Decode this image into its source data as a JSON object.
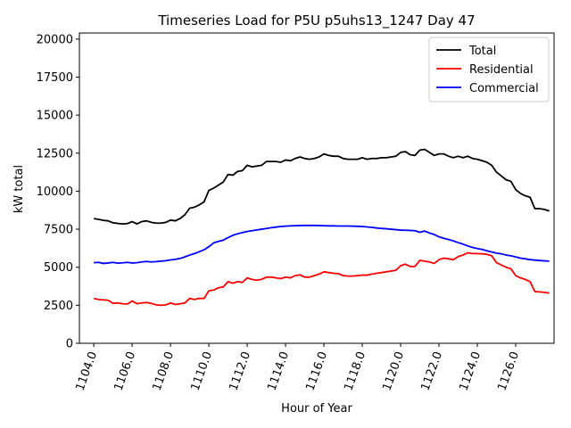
{
  "chart_data": {
    "type": "line",
    "title": "Timeseries Load for P5U p5uhs13_1247  Day 47",
    "xlabel": "Hour of Year",
    "ylabel": "kW total",
    "xlim": [
      1103.25,
      1128.0
    ],
    "ylim": [
      0,
      20400
    ],
    "x_ticks": [
      1104,
      1106,
      1108,
      1110,
      1112,
      1114,
      1116,
      1118,
      1120,
      1122,
      1124,
      1126
    ],
    "x_tick_labels": [
      "1104.0",
      "1106.0",
      "1108.0",
      "1110.0",
      "1112.0",
      "1114.0",
      "1116.0",
      "1118.0",
      "1120.0",
      "1122.0",
      "1124.0",
      "1126.0"
    ],
    "y_ticks": [
      0,
      2500,
      5000,
      7500,
      10000,
      12500,
      15000,
      17500,
      20000
    ],
    "y_tick_labels": [
      "0",
      "2500",
      "5000",
      "7500",
      "10000",
      "12500",
      "15000",
      "17500",
      "20000"
    ],
    "grid": false,
    "legend_position": "top-right",
    "x_start": 1104.0,
    "x_step": 0.25,
    "series": [
      {
        "name": "Total",
        "color": "#000000",
        "values": [
          8200,
          8150,
          8080,
          8050,
          7920,
          7880,
          7850,
          7870,
          8000,
          7850,
          8000,
          8050,
          7950,
          7900,
          7900,
          7950,
          8100,
          8050,
          8200,
          8450,
          8880,
          8950,
          9100,
          9300,
          10050,
          10200,
          10400,
          10600,
          11100,
          11050,
          11300,
          11350,
          11700,
          11600,
          11650,
          11700,
          11950,
          11950,
          11950,
          11900,
          12050,
          12000,
          12150,
          12250,
          12150,
          12100,
          12150,
          12250,
          12450,
          12350,
          12300,
          12300,
          12150,
          12100,
          12100,
          12100,
          12200,
          12100,
          12150,
          12150,
          12200,
          12200,
          12250,
          12300,
          12550,
          12600,
          12400,
          12350,
          12700,
          12750,
          12550,
          12350,
          12450,
          12450,
          12300,
          12200,
          12300,
          12200,
          12300,
          12150,
          12100,
          12000,
          11900,
          11700,
          11250,
          11000,
          10750,
          10650,
          10100,
          9850,
          9700,
          9600,
          8850,
          8850,
          8800,
          8700
        ]
      },
      {
        "name": "Residential",
        "color": "#ff0000",
        "values": [
          2950,
          2880,
          2850,
          2830,
          2630,
          2650,
          2600,
          2580,
          2780,
          2600,
          2650,
          2680,
          2620,
          2530,
          2500,
          2520,
          2650,
          2550,
          2600,
          2650,
          2950,
          2880,
          2950,
          2950,
          3450,
          3500,
          3650,
          3700,
          4050,
          3950,
          4050,
          4000,
          4300,
          4200,
          4150,
          4200,
          4350,
          4350,
          4300,
          4250,
          4350,
          4300,
          4450,
          4500,
          4350,
          4350,
          4450,
          4550,
          4700,
          4650,
          4600,
          4580,
          4450,
          4420,
          4420,
          4450,
          4480,
          4480,
          4550,
          4600,
          4650,
          4700,
          4750,
          4800,
          5100,
          5200,
          5050,
          5050,
          5450,
          5400,
          5350,
          5250,
          5500,
          5600,
          5550,
          5500,
          5700,
          5800,
          5950,
          5900,
          5900,
          5880,
          5850,
          5750,
          5300,
          5150,
          5000,
          4900,
          4450,
          4300,
          4200,
          4050,
          3400,
          3380,
          3350,
          3300
        ]
      },
      {
        "name": "Commercial",
        "color": "#0000ff",
        "values": [
          5300,
          5320,
          5250,
          5280,
          5320,
          5270,
          5290,
          5320,
          5280,
          5300,
          5350,
          5380,
          5350,
          5370,
          5400,
          5430,
          5480,
          5520,
          5580,
          5680,
          5800,
          5900,
          6020,
          6150,
          6350,
          6600,
          6700,
          6780,
          6950,
          7100,
          7200,
          7280,
          7350,
          7400,
          7450,
          7500,
          7550,
          7600,
          7640,
          7680,
          7700,
          7720,
          7730,
          7740,
          7750,
          7750,
          7750,
          7740,
          7730,
          7720,
          7720,
          7710,
          7710,
          7710,
          7700,
          7690,
          7680,
          7650,
          7620,
          7580,
          7550,
          7530,
          7500,
          7470,
          7440,
          7430,
          7420,
          7400,
          7300,
          7380,
          7250,
          7150,
          7000,
          6900,
          6820,
          6730,
          6620,
          6520,
          6400,
          6300,
          6230,
          6170,
          6080,
          6000,
          5930,
          5880,
          5800,
          5750,
          5680,
          5600,
          5550,
          5500,
          5470,
          5440,
          5420,
          5400
        ]
      }
    ]
  }
}
